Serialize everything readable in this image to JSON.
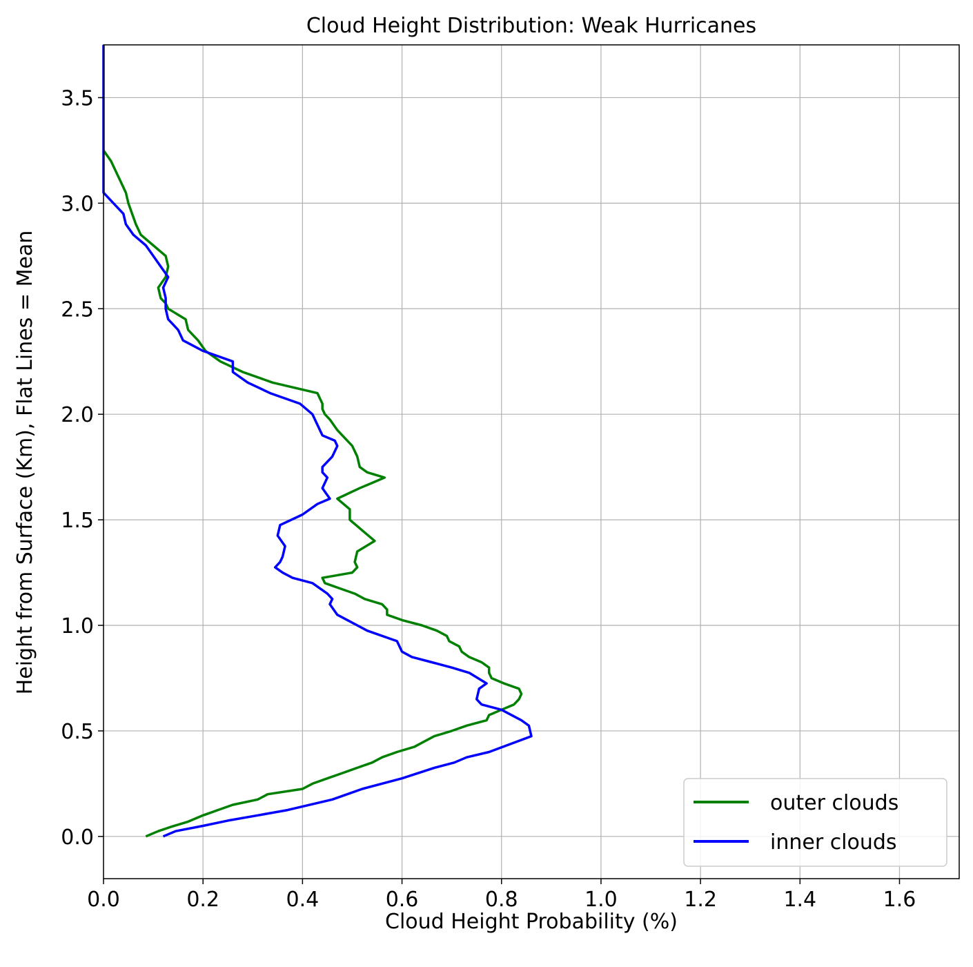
{
  "chart_data": {
    "type": "line",
    "title": "Cloud Height Distribution: Weak Hurricanes",
    "xlabel": "Cloud Height Probability (%)",
    "ylabel": "Height from Surface (Km), Flat Lines = Mean",
    "xlim": [
      0.0,
      1.72
    ],
    "ylim": [
      -0.2,
      3.75
    ],
    "xticks": [
      0.0,
      0.2,
      0.4,
      0.6,
      0.8,
      1.0,
      1.2,
      1.4,
      1.6
    ],
    "xtick_labels": [
      "0.0",
      "0.2",
      "0.4",
      "0.6",
      "0.8",
      "1.0",
      "1.2",
      "1.4",
      "1.6"
    ],
    "yticks": [
      0.0,
      0.5,
      1.0,
      1.5,
      2.0,
      2.5,
      3.0,
      3.5
    ],
    "ytick_labels": [
      "0.0",
      "0.5",
      "1.0",
      "1.5",
      "2.0",
      "2.5",
      "3.0",
      "3.5"
    ],
    "grid": true,
    "legend_position": "lower-right",
    "series": [
      {
        "name": "outer clouds",
        "color": "#008000",
        "points": [
          [
            0.085,
            0.0
          ],
          [
            0.11,
            0.025
          ],
          [
            0.135,
            0.045
          ],
          [
            0.17,
            0.07
          ],
          [
            0.2,
            0.1
          ],
          [
            0.23,
            0.125
          ],
          [
            0.26,
            0.15
          ],
          [
            0.31,
            0.175
          ],
          [
            0.33,
            0.2
          ],
          [
            0.4,
            0.225
          ],
          [
            0.42,
            0.25
          ],
          [
            0.45,
            0.275
          ],
          [
            0.48,
            0.3
          ],
          [
            0.51,
            0.325
          ],
          [
            0.54,
            0.35
          ],
          [
            0.56,
            0.375
          ],
          [
            0.59,
            0.4
          ],
          [
            0.625,
            0.425
          ],
          [
            0.645,
            0.45
          ],
          [
            0.665,
            0.475
          ],
          [
            0.7,
            0.5
          ],
          [
            0.73,
            0.525
          ],
          [
            0.77,
            0.55
          ],
          [
            0.775,
            0.575
          ],
          [
            0.8,
            0.6
          ],
          [
            0.825,
            0.625
          ],
          [
            0.835,
            0.65
          ],
          [
            0.84,
            0.675
          ],
          [
            0.835,
            0.7
          ],
          [
            0.805,
            0.725
          ],
          [
            0.78,
            0.75
          ],
          [
            0.775,
            0.775
          ],
          [
            0.775,
            0.8
          ],
          [
            0.76,
            0.825
          ],
          [
            0.735,
            0.85
          ],
          [
            0.72,
            0.875
          ],
          [
            0.715,
            0.9
          ],
          [
            0.695,
            0.925
          ],
          [
            0.69,
            0.95
          ],
          [
            0.67,
            0.975
          ],
          [
            0.64,
            1.0
          ],
          [
            0.6,
            1.025
          ],
          [
            0.57,
            1.05
          ],
          [
            0.57,
            1.075
          ],
          [
            0.56,
            1.1
          ],
          [
            0.525,
            1.125
          ],
          [
            0.505,
            1.15
          ],
          [
            0.475,
            1.175
          ],
          [
            0.445,
            1.2
          ],
          [
            0.44,
            1.225
          ],
          [
            0.5,
            1.25
          ],
          [
            0.51,
            1.275
          ],
          [
            0.505,
            1.3
          ],
          [
            0.51,
            1.35
          ],
          [
            0.545,
            1.4
          ],
          [
            0.52,
            1.45
          ],
          [
            0.495,
            1.5
          ],
          [
            0.495,
            1.55
          ],
          [
            0.47,
            1.6
          ],
          [
            0.515,
            1.65
          ],
          [
            0.54,
            1.675
          ],
          [
            0.565,
            1.7
          ],
          [
            0.53,
            1.725
          ],
          [
            0.515,
            1.75
          ],
          [
            0.51,
            1.8
          ],
          [
            0.5,
            1.85
          ],
          [
            0.47,
            1.925
          ],
          [
            0.455,
            1.975
          ],
          [
            0.445,
            2.0
          ],
          [
            0.44,
            2.025
          ],
          [
            0.44,
            2.05
          ],
          [
            0.43,
            2.1
          ],
          [
            0.34,
            2.15
          ],
          [
            0.28,
            2.2
          ],
          [
            0.235,
            2.25
          ],
          [
            0.205,
            2.3
          ],
          [
            0.19,
            2.35
          ],
          [
            0.17,
            2.4
          ],
          [
            0.165,
            2.45
          ],
          [
            0.13,
            2.5
          ],
          [
            0.125,
            2.525
          ],
          [
            0.115,
            2.55
          ],
          [
            0.11,
            2.6
          ],
          [
            0.125,
            2.65
          ],
          [
            0.13,
            2.7
          ],
          [
            0.125,
            2.75
          ],
          [
            0.1,
            2.8
          ],
          [
            0.075,
            2.85
          ],
          [
            0.065,
            2.9
          ],
          [
            0.05,
            3.0
          ],
          [
            0.045,
            3.05
          ],
          [
            0.035,
            3.1
          ],
          [
            0.025,
            3.15
          ],
          [
            0.015,
            3.2
          ],
          [
            0.0,
            3.25
          ]
        ]
      },
      {
        "name": "inner clouds",
        "color": "#0000ff",
        "points": [
          [
            0.12,
            0.0
          ],
          [
            0.145,
            0.025
          ],
          [
            0.2,
            0.05
          ],
          [
            0.25,
            0.075
          ],
          [
            0.31,
            0.1
          ],
          [
            0.37,
            0.125
          ],
          [
            0.46,
            0.175
          ],
          [
            0.52,
            0.225
          ],
          [
            0.6,
            0.275
          ],
          [
            0.665,
            0.325
          ],
          [
            0.705,
            0.35
          ],
          [
            0.73,
            0.375
          ],
          [
            0.775,
            0.4
          ],
          [
            0.86,
            0.475
          ],
          [
            0.855,
            0.525
          ],
          [
            0.84,
            0.55
          ],
          [
            0.8,
            0.6
          ],
          [
            0.76,
            0.625
          ],
          [
            0.75,
            0.65
          ],
          [
            0.755,
            0.7
          ],
          [
            0.77,
            0.725
          ],
          [
            0.735,
            0.775
          ],
          [
            0.7,
            0.8
          ],
          [
            0.66,
            0.825
          ],
          [
            0.62,
            0.85
          ],
          [
            0.6,
            0.875
          ],
          [
            0.59,
            0.925
          ],
          [
            0.53,
            0.975
          ],
          [
            0.51,
            1.0
          ],
          [
            0.47,
            1.05
          ],
          [
            0.455,
            1.1
          ],
          [
            0.46,
            1.125
          ],
          [
            0.45,
            1.15
          ],
          [
            0.42,
            1.2
          ],
          [
            0.38,
            1.225
          ],
          [
            0.36,
            1.25
          ],
          [
            0.345,
            1.275
          ],
          [
            0.355,
            1.3
          ],
          [
            0.36,
            1.325
          ],
          [
            0.365,
            1.375
          ],
          [
            0.35,
            1.425
          ],
          [
            0.355,
            1.475
          ],
          [
            0.4,
            1.525
          ],
          [
            0.43,
            1.575
          ],
          [
            0.455,
            1.6
          ],
          [
            0.44,
            1.65
          ],
          [
            0.45,
            1.7
          ],
          [
            0.44,
            1.725
          ],
          [
            0.44,
            1.75
          ],
          [
            0.46,
            1.8
          ],
          [
            0.47,
            1.85
          ],
          [
            0.465,
            1.875
          ],
          [
            0.44,
            1.9
          ],
          [
            0.43,
            1.95
          ],
          [
            0.42,
            2.0
          ],
          [
            0.395,
            2.05
          ],
          [
            0.335,
            2.1
          ],
          [
            0.29,
            2.15
          ],
          [
            0.26,
            2.2
          ],
          [
            0.26,
            2.25
          ],
          [
            0.2,
            2.3
          ],
          [
            0.16,
            2.35
          ],
          [
            0.15,
            2.4
          ],
          [
            0.13,
            2.45
          ],
          [
            0.125,
            2.5
          ],
          [
            0.125,
            2.55
          ],
          [
            0.12,
            2.6
          ],
          [
            0.13,
            2.65
          ],
          [
            0.115,
            2.7
          ],
          [
            0.1,
            2.75
          ],
          [
            0.085,
            2.8
          ],
          [
            0.06,
            2.85
          ],
          [
            0.045,
            2.9
          ],
          [
            0.04,
            2.95
          ],
          [
            0.02,
            3.0
          ],
          [
            0.0,
            3.05
          ],
          [
            0.0,
            3.75
          ]
        ]
      }
    ]
  }
}
